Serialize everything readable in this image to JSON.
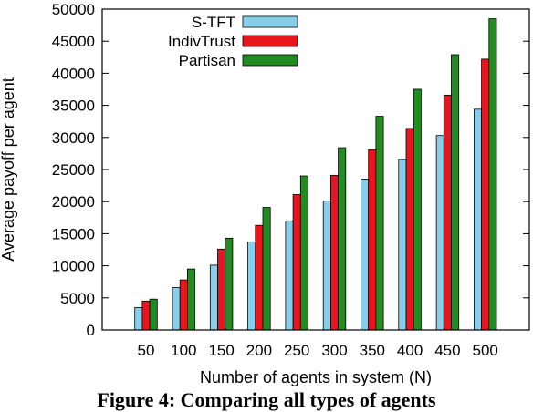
{
  "chart_data": {
    "type": "bar",
    "title": "",
    "xlabel": "Number of agents in system (N)",
    "ylabel": "Average payoff per agent",
    "ylim": [
      0,
      50000
    ],
    "yticks": [
      0,
      5000,
      10000,
      15000,
      20000,
      25000,
      30000,
      35000,
      40000,
      45000,
      50000
    ],
    "categories": [
      "50",
      "100",
      "150",
      "200",
      "250",
      "300",
      "350",
      "400",
      "450",
      "500"
    ],
    "legend_position": "top-left",
    "grid": false,
    "series": [
      {
        "name": "S-TFT",
        "color": "#87ceeb",
        "values": [
          3500,
          6600,
          10100,
          13700,
          17000,
          20100,
          23500,
          26600,
          30300,
          34400
        ]
      },
      {
        "name": "IndivTrust",
        "color": "#e8141e",
        "values": [
          4500,
          7800,
          12600,
          16300,
          21100,
          24100,
          28100,
          31400,
          36600,
          42200
        ]
      },
      {
        "name": "Partisan",
        "color": "#228b22",
        "values": [
          4800,
          9500,
          14300,
          19100,
          24000,
          28400,
          33300,
          37500,
          42900,
          48500
        ]
      }
    ]
  },
  "caption": "Figure 4: Comparing all types of agents"
}
